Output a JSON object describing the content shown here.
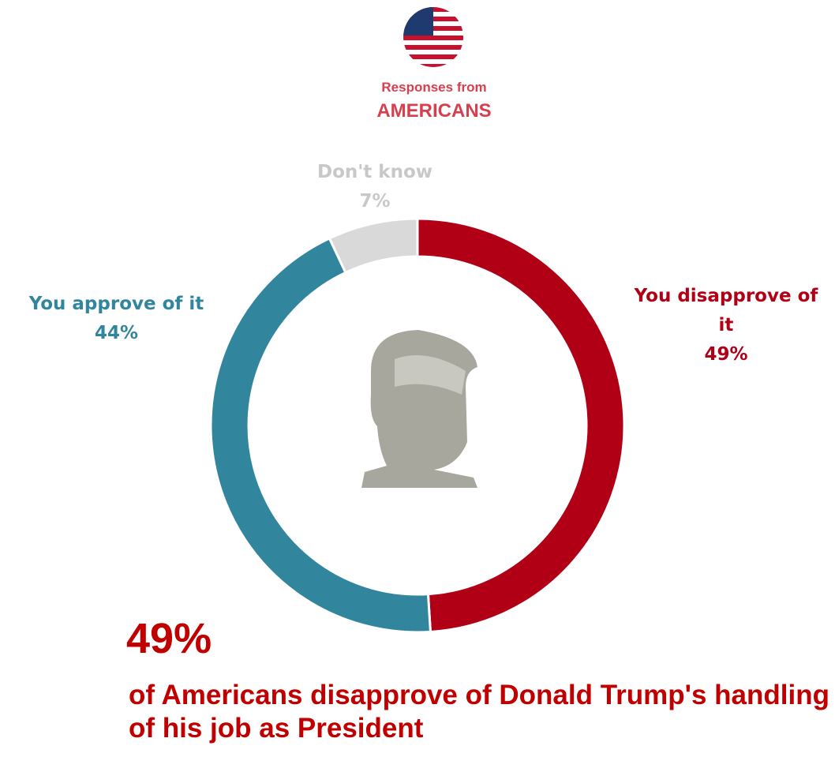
{
  "chart_data": {
    "type": "donut",
    "subtitle": "Responses from",
    "title": "AMERICANS",
    "categories": [
      "You disapprove of it",
      "You approve of it",
      "Don't know"
    ],
    "values": [
      49,
      44,
      7
    ],
    "value_labels": [
      "49%",
      "44%",
      "7%"
    ],
    "colors": [
      "#b10016",
      "#31869e",
      "#d9d9d9"
    ],
    "label_colors": [
      "#b10016",
      "#31869e",
      "#c8c8c8"
    ],
    "annotations": [
      "49%",
      "of Americans disapprove of Donald Trump's handling of his job as President"
    ]
  }
}
